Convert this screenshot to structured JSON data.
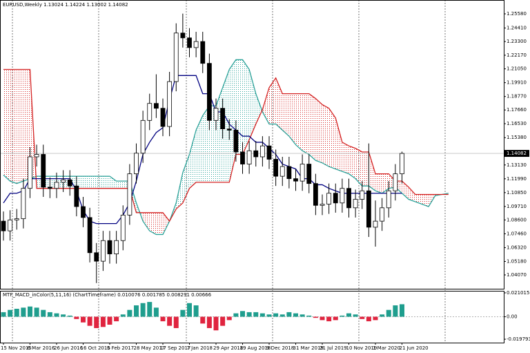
{
  "chart_data": [
    {
      "type": "candlestick",
      "title": "EURUSD,Weekly",
      "ohlc": [
        1.13024,
        1.14224,
        1.13002,
        1.14082
      ],
      "color": "#000000",
      "categories": [
        "15 Nov 2015",
        null,
        null,
        null,
        "6 Mar 2016",
        null,
        null,
        null,
        "26 Jun 2016",
        null,
        null,
        null,
        "16 Oct 2016",
        null,
        null,
        null,
        "5 Feb 2017",
        null,
        null,
        null,
        "28 May 2017",
        null,
        null,
        null,
        "17 Sep 2017",
        null,
        null,
        null,
        "7 Jan 2018",
        null,
        null,
        null,
        "29 Apr 2018",
        null,
        null,
        null,
        "19 Aug 2018",
        null,
        null,
        null,
        "9 Dec 2018",
        null,
        null,
        null,
        "31 Mar 2019",
        null,
        null,
        null,
        "21 Jul 2019",
        null,
        null,
        null,
        "10 Nov 2019",
        null,
        null,
        null,
        "1 Mar 2020",
        null,
        null,
        null,
        "21 Jun 2020",
        null,
        null,
        null,
        null,
        null,
        null,
        null
      ],
      "open": [
        1.085,
        1.077,
        1.086,
        1.087,
        1.112,
        1.138,
        1.14,
        1.113,
        1.112,
        1.117,
        1.119,
        1.114,
        1.097,
        1.088,
        1.059,
        1.052,
        1.069,
        1.058,
        1.069,
        1.09,
        1.124,
        1.141,
        1.168,
        1.182,
        1.178,
        1.163,
        1.2,
        1.24,
        1.236,
        1.228,
        1.233,
        1.215,
        1.168,
        1.178,
        1.161,
        1.16,
        1.142,
        1.132,
        1.143,
        1.138,
        1.147,
        1.136,
        1.122,
        1.13,
        1.12,
        1.118,
        1.132,
        1.116,
        1.098,
        1.099,
        1.108,
        1.1,
        1.112,
        1.096,
        1.103,
        1.11,
        1.08,
        1.085,
        1.096,
        1.11,
        1.124,
        null,
        null,
        null,
        null,
        null,
        null,
        null
      ],
      "high": [
        1.093,
        1.094,
        1.095,
        1.12,
        1.146,
        1.148,
        1.148,
        1.121,
        1.125,
        1.127,
        1.127,
        1.122,
        1.105,
        1.096,
        1.067,
        1.077,
        1.077,
        1.077,
        1.098,
        1.132,
        1.149,
        1.176,
        1.19,
        1.206,
        1.186,
        1.208,
        1.248,
        1.256,
        1.244,
        1.241,
        1.241,
        1.223,
        1.186,
        1.186,
        1.169,
        1.168,
        1.15,
        1.151,
        1.151,
        1.155,
        1.155,
        1.144,
        1.138,
        1.138,
        1.128,
        1.14,
        1.14,
        1.124,
        1.107,
        1.116,
        1.116,
        1.12,
        1.12,
        1.111,
        1.118,
        1.149,
        1.102,
        1.104,
        1.118,
        1.132,
        1.14224,
        null,
        null,
        null,
        null,
        null,
        null,
        null
      ],
      "low": [
        1.069,
        1.069,
        1.078,
        1.079,
        1.104,
        1.13,
        1.105,
        1.104,
        1.104,
        1.109,
        1.106,
        1.089,
        1.08,
        1.051,
        1.034,
        1.044,
        1.05,
        1.05,
        1.061,
        1.082,
        1.116,
        1.133,
        1.16,
        1.17,
        1.155,
        1.155,
        1.192,
        1.228,
        1.22,
        1.22,
        1.207,
        1.16,
        1.16,
        1.153,
        1.152,
        1.134,
        1.124,
        1.124,
        1.13,
        1.13,
        1.128,
        1.114,
        1.114,
        1.112,
        1.11,
        1.11,
        1.108,
        1.09,
        1.09,
        1.091,
        1.092,
        1.092,
        1.088,
        1.088,
        1.095,
        1.072,
        1.064,
        1.077,
        1.088,
        1.102,
        1.116,
        null,
        null,
        null,
        null,
        null,
        null,
        null
      ],
      "close": [
        1.077,
        1.086,
        1.087,
        1.112,
        1.138,
        1.14,
        1.113,
        1.112,
        1.117,
        1.119,
        1.114,
        1.097,
        1.088,
        1.059,
        1.052,
        1.069,
        1.058,
        1.069,
        1.09,
        1.124,
        1.141,
        1.168,
        1.182,
        1.178,
        1.163,
        1.2,
        1.24,
        1.236,
        1.228,
        1.233,
        1.215,
        1.168,
        1.178,
        1.161,
        1.16,
        1.142,
        1.132,
        1.143,
        1.138,
        1.147,
        1.136,
        1.122,
        1.13,
        1.12,
        1.118,
        1.132,
        1.116,
        1.098,
        1.099,
        1.108,
        1.1,
        1.112,
        1.096,
        1.103,
        1.11,
        1.08,
        1.085,
        1.096,
        1.11,
        1.124,
        1.14082,
        null,
        null,
        null,
        null,
        null,
        null,
        null
      ],
      "series": [
        {
          "color": "#2aa198",
          "values": [
            1.123,
            1.118,
            1.116,
            1.118,
            1.12,
            1.122,
            1.122,
            1.122,
            1.122,
            1.122,
            1.122,
            1.122,
            1.122,
            1.122,
            1.122,
            1.122,
            1.122,
            1.118,
            1.118,
            1.118,
            1.1,
            1.085,
            1.077,
            1.074,
            1.074,
            1.085,
            1.1,
            1.125,
            1.14,
            1.16,
            1.172,
            1.18,
            1.18,
            1.195,
            1.21,
            1.218,
            1.218,
            1.21,
            1.19,
            1.175,
            1.165,
            1.165,
            1.16,
            1.155,
            1.148,
            1.143,
            1.14,
            1.135,
            1.133,
            1.13,
            1.128,
            1.126,
            1.124,
            1.12,
            1.114,
            1.114,
            1.11,
            1.108,
            1.112,
            1.113,
            1.108,
            1.103,
            1.101,
            1.099,
            1.097,
            1.106,
            1.107,
            1.108
          ]
        },
        {
          "color": "#d42020",
          "values": [
            1.21,
            1.21,
            1.21,
            1.21,
            1.21,
            1.112,
            1.112,
            1.112,
            1.112,
            1.112,
            1.112,
            1.112,
            1.112,
            1.112,
            1.112,
            1.112,
            1.112,
            1.112,
            1.112,
            1.112,
            1.092,
            1.092,
            1.092,
            1.092,
            1.092,
            1.085,
            1.095,
            1.1,
            1.112,
            1.117,
            1.117,
            1.117,
            1.117,
            1.117,
            1.117,
            1.14,
            1.14,
            1.152,
            1.165,
            1.177,
            1.195,
            1.203,
            1.19,
            1.19,
            1.19,
            1.19,
            1.19,
            1.186,
            1.181,
            1.178,
            1.17,
            1.15,
            1.147,
            1.145,
            1.142,
            1.142,
            1.124,
            1.124,
            1.124,
            1.118,
            1.118,
            1.113,
            1.107,
            1.107,
            1.107,
            1.107,
            1.107,
            1.107
          ]
        },
        {
          "color": "#000080",
          "values": [
            1.1,
            1.108,
            1.108,
            1.11,
            1.12,
            1.12,
            1.12,
            1.12,
            1.12,
            1.12,
            1.12,
            1.11,
            1.094,
            1.085,
            1.083,
            1.083,
            1.083,
            1.083,
            1.09,
            1.1,
            1.118,
            1.14,
            1.15,
            1.158,
            1.162,
            1.185,
            1.205,
            1.205,
            1.205,
            1.205,
            1.19,
            1.19,
            1.175,
            1.175,
            1.165,
            1.16,
            1.155,
            1.155,
            1.15,
            1.15,
            1.145,
            1.14,
            1.132,
            1.13,
            1.128,
            1.12,
            1.12,
            1.115,
            1.115,
            1.112,
            1.11,
            1.108,
            1.108,
            1.108,
            1.108,
            1.108,
            1.108,
            1.108,
            1.108,
            1.108,
            1.108,
            null,
            null,
            null,
            null,
            null,
            null,
            null
          ]
        }
      ],
      "ylim": [
        1.0293,
        1.2672
      ],
      "yticks": [
        {
          "value": 1.2558,
          "label": "1.25580"
        },
        {
          "value": 1.2441,
          "label": "1.24410"
        },
        {
          "value": 1.233,
          "label": "1.23300"
        },
        {
          "value": 1.2217,
          "label": "1.22170"
        },
        {
          "value": 1.2105,
          "label": "1.21050"
        },
        {
          "value": 1.1991,
          "label": "1.19910"
        },
        {
          "value": 1.1877,
          "label": "1.18770"
        },
        {
          "value": 1.1766,
          "label": "1.17660"
        },
        {
          "value": 1.1653,
          "label": "1.16530"
        },
        {
          "value": 1.1538,
          "label": "1.15380"
        },
        {
          "value": 1.1313,
          "label": "1.13130"
        },
        {
          "value": 1.1199,
          "label": "1.11990"
        },
        {
          "value": 1.1085,
          "label": "1.10850"
        },
        {
          "value": 1.0971,
          "label": "1.09710"
        },
        {
          "value": 1.086,
          "label": "1.08600"
        },
        {
          "value": 1.0746,
          "label": "1.07460"
        },
        {
          "value": 1.0632,
          "label": "1.06320"
        },
        {
          "value": 1.0518,
          "label": "1.05180"
        },
        {
          "value": 1.0407,
          "label": "1.04070"
        }
      ]
    },
    {
      "type": "bar",
      "title": "MTF_MACD_inColor(5,11,16) (ChartTimeframe)",
      "header_values": [
        0.010076,
        0.001785,
        0.008291,
        0.00666
      ],
      "colors": [
        "#1f9e8e",
        "#e0243f"
      ],
      "values": [
        0.004,
        0.006,
        0.007,
        0.008,
        0.009,
        0.008,
        0.006,
        0.004,
        0.003,
        0.002,
        0.001,
        -0.002,
        -0.005,
        -0.008,
        -0.01,
        -0.009,
        -0.007,
        -0.004,
        0.002,
        0.006,
        0.01,
        0.012,
        0.013,
        0.008,
        -0.004,
        -0.008,
        -0.01,
        0.006,
        0.012,
        0.01,
        -0.006,
        -0.01,
        -0.012,
        -0.008,
        -0.003,
        0.003,
        0.005,
        0.004,
        0.004,
        0.003,
        0.002,
        0.003,
        0.002,
        0.004,
        0.003,
        0.002,
        0.001,
        -0.001,
        -0.003,
        -0.004,
        -0.003,
        0.001,
        0.003,
        0.002,
        -0.002,
        -0.004,
        -0.003,
        0.002,
        0.006,
        0.01,
        0.011,
        null,
        null,
        null,
        null,
        null,
        null,
        null
      ],
      "ylim": [
        -0.0228,
        0.0228
      ],
      "yticks": [
        0.021015,
        {
          "value": 0,
          "label": "0.00"
        },
        -0.019793
      ]
    }
  ]
}
